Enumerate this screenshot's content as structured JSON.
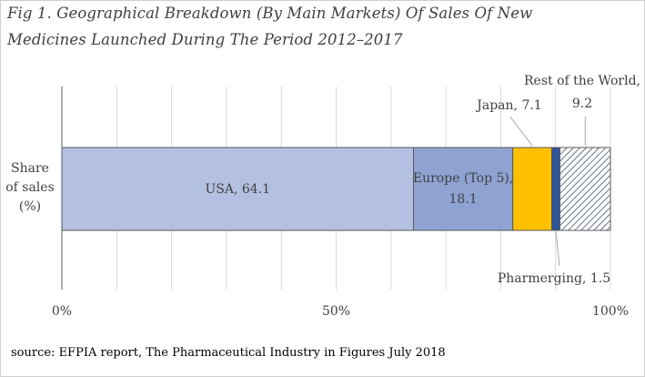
{
  "title_lines": [
    "Fig 1. Geographical Breakdown (By Main Markets) Of Sales Of New",
    "Medicines Launched During The Period 2012–2017"
  ],
  "source": "source: EFPIA report, The Pharmaceutical Industry in Figures July 2018",
  "chart_data": {
    "type": "bar",
    "orientation": "horizontal",
    "stacked": true,
    "categories": [
      "Share of sales (%)"
    ],
    "ylabel_lines": [
      "Share",
      "of sales",
      "(%)"
    ],
    "xlim": [
      0,
      100
    ],
    "xticks": [
      "0%",
      "50%",
      "100%"
    ],
    "grid": "vertical",
    "series": [
      {
        "name": "USA",
        "values": [
          64.1
        ],
        "label": "USA, 64.1",
        "color": "#b4c0e1",
        "pattern": "none"
      },
      {
        "name": "Europe (Top 5)",
        "values": [
          18.1
        ],
        "label_lines": [
          "Europe (Top 5),",
          "18.1"
        ],
        "color": "#8fa3d3",
        "pattern": "none"
      },
      {
        "name": "Japan",
        "values": [
          7.1
        ],
        "label": "Japan, 7.1",
        "color": "#ffc000",
        "pattern": "none"
      },
      {
        "name": "Pharmerging",
        "values": [
          1.5
        ],
        "label": "Pharmerging, 1.5",
        "color": "#2e5597",
        "pattern": "none"
      },
      {
        "name": "Rest of the World",
        "values": [
          9.2
        ],
        "label_lines": [
          "Rest of the World,",
          "9.2"
        ],
        "color": "#44546a",
        "pattern": "diagonal-hatch"
      }
    ]
  }
}
